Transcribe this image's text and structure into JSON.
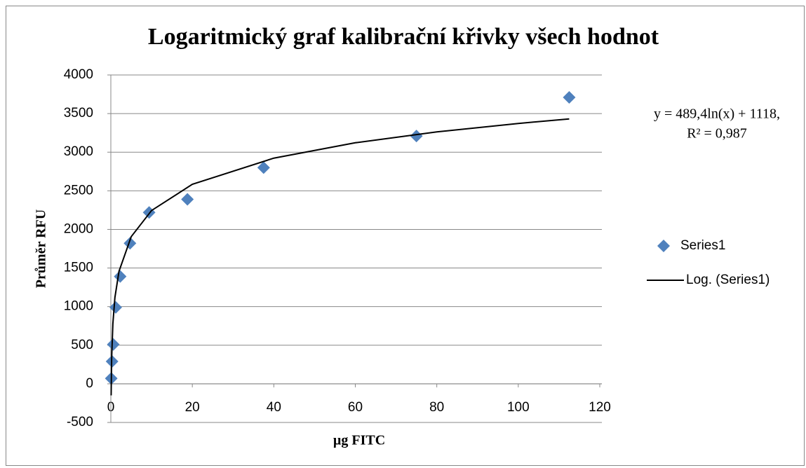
{
  "chart_data": {
    "type": "scatter",
    "title": "Logaritmický graf kalibrační křivky všech hodnot",
    "x_label": "µg FITC",
    "y_label": "Průměr RFU",
    "series": [
      {
        "name": "Series1",
        "color": "#4f81bd",
        "marker": "diamond",
        "line": false,
        "x": [
          0.1,
          0.3,
          0.6,
          1.2,
          2.3,
          4.7,
          9.4,
          18.8,
          37.5,
          75,
          112.5
        ],
        "values": [
          70,
          290,
          510,
          990,
          1390,
          1820,
          2220,
          2390,
          2800,
          3210,
          3710
        ]
      },
      {
        "name": "Log. (Series1)",
        "color": "#000000",
        "marker": "none",
        "line": true,
        "x": [
          0.075,
          0.2,
          0.5,
          1,
          2,
          5,
          10,
          20,
          40,
          60,
          80,
          100,
          112.5
        ],
        "values": [
          -150,
          330,
          779,
          1118,
          1457,
          1906,
          2245,
          2584,
          2923,
          3122,
          3263,
          3372,
          3431
        ]
      }
    ],
    "annotation": [
      "y = 489,4ln(x) + 1118,",
      "R² = 0,987"
    ],
    "xlim": [
      0,
      120
    ],
    "xticks": [
      0,
      20,
      40,
      60,
      80,
      100,
      120
    ],
    "ylim": [
      -500,
      4000
    ],
    "yticks": [
      -500,
      0,
      500,
      1000,
      1500,
      2000,
      2500,
      3000,
      3500,
      4000
    ],
    "grid": true,
    "legend": "right"
  }
}
